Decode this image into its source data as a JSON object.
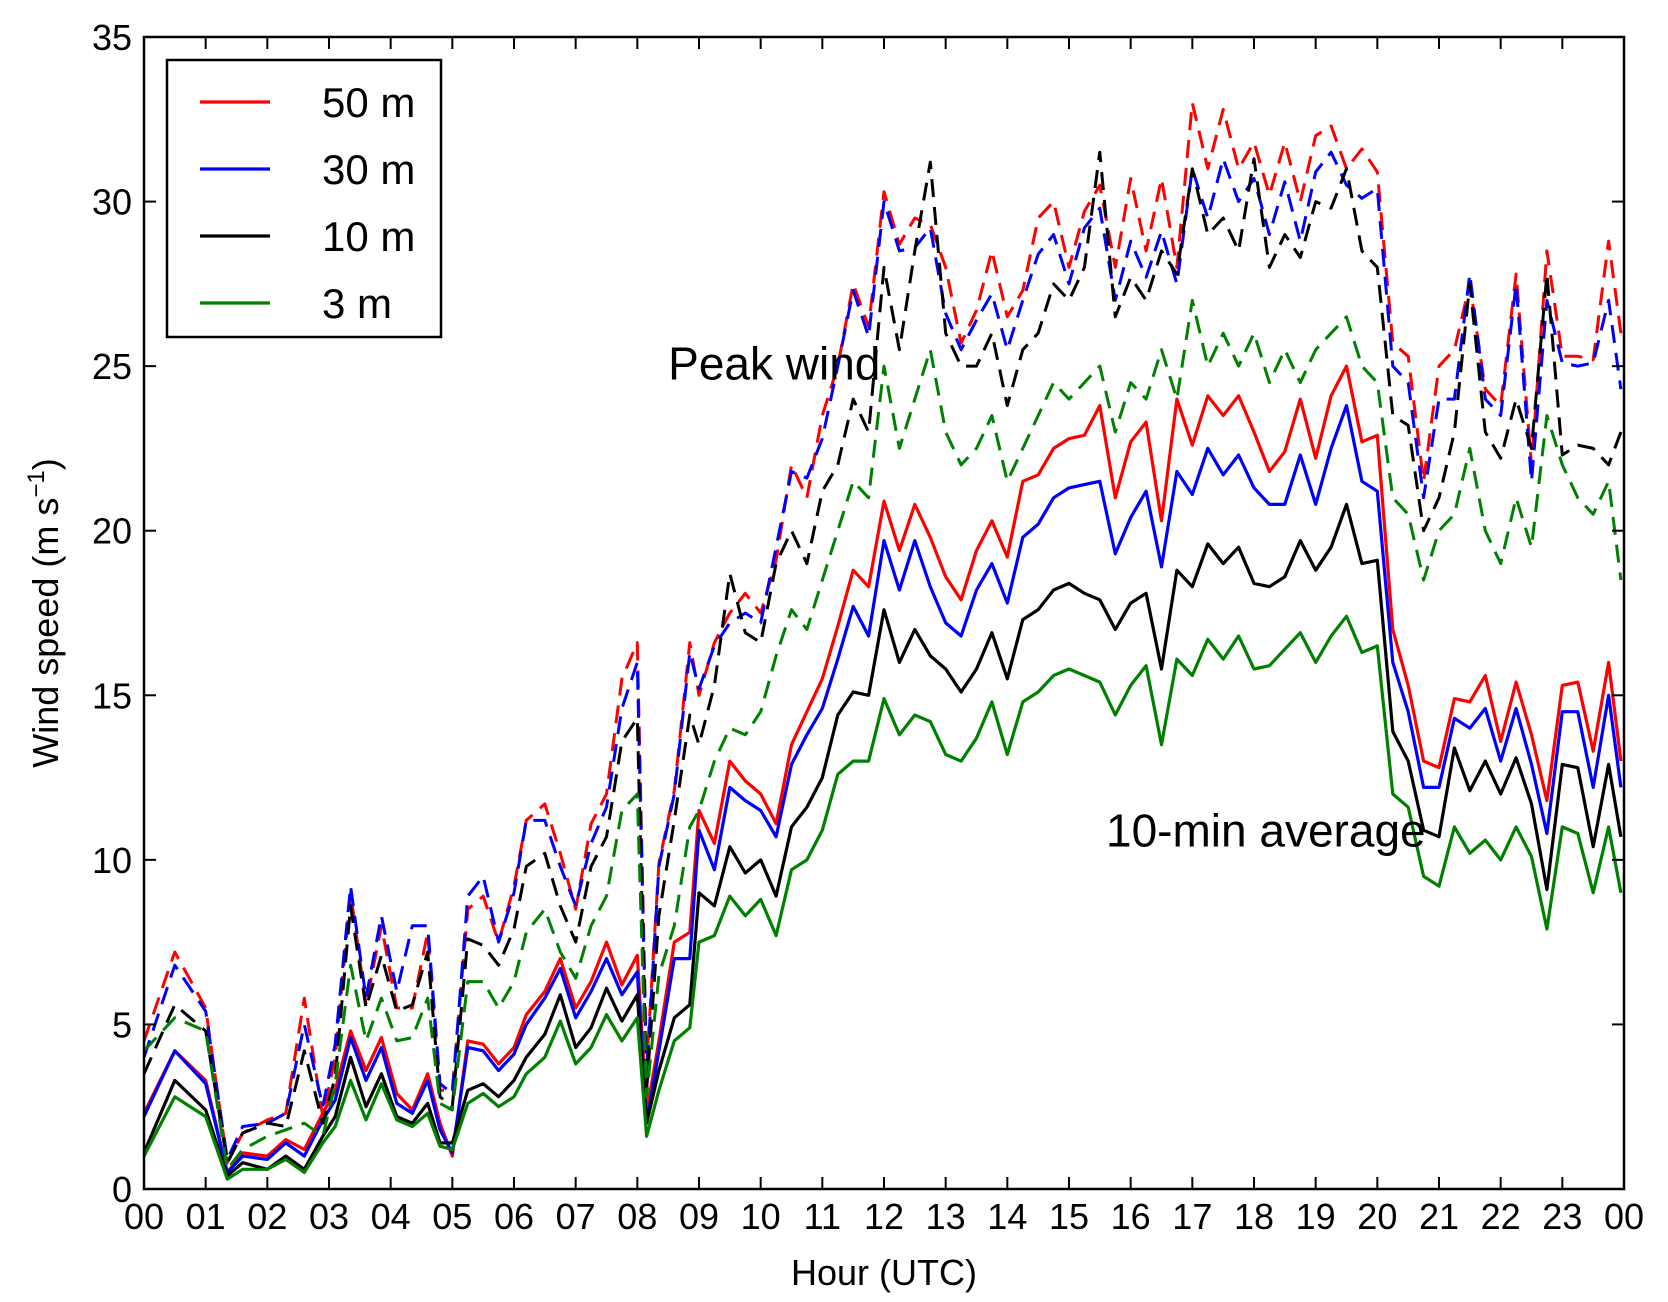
{
  "chart_data": {
    "type": "line",
    "xlabel": "Hour (UTC)",
    "ylabel": "Wind speed (m s",
    "ylabel_exponent": "−1",
    "ylabel_close": ")",
    "xlim": [
      0,
      24
    ],
    "ylim": [
      0,
      35
    ],
    "x_ticks": [
      {
        "value": 0,
        "label": "00"
      },
      {
        "value": 1,
        "label": "01"
      },
      {
        "value": 2,
        "label": "02"
      },
      {
        "value": 3,
        "label": "03"
      },
      {
        "value": 4,
        "label": "04"
      },
      {
        "value": 5,
        "label": "05"
      },
      {
        "value": 6,
        "label": "06"
      },
      {
        "value": 7,
        "label": "07"
      },
      {
        "value": 8,
        "label": "08"
      },
      {
        "value": 9,
        "label": "09"
      },
      {
        "value": 10,
        "label": "10"
      },
      {
        "value": 11,
        "label": "11"
      },
      {
        "value": 12,
        "label": "12"
      },
      {
        "value": 13,
        "label": "13"
      },
      {
        "value": 14,
        "label": "14"
      },
      {
        "value": 15,
        "label": "15"
      },
      {
        "value": 16,
        "label": "16"
      },
      {
        "value": 17,
        "label": "17"
      },
      {
        "value": 18,
        "label": "18"
      },
      {
        "value": 19,
        "label": "19"
      },
      {
        "value": 20,
        "label": "20"
      },
      {
        "value": 21,
        "label": "21"
      },
      {
        "value": 22,
        "label": "22"
      },
      {
        "value": 23,
        "label": "23"
      },
      {
        "value": 24,
        "label": "00"
      }
    ],
    "y_ticks": [
      {
        "value": 0,
        "label": "0"
      },
      {
        "value": 5,
        "label": "5"
      },
      {
        "value": 10,
        "label": "10"
      },
      {
        "value": 15,
        "label": "15"
      },
      {
        "value": 20,
        "label": "20"
      },
      {
        "value": 25,
        "label": "25"
      },
      {
        "value": 30,
        "label": "30"
      },
      {
        "value": 35,
        "label": "35"
      }
    ],
    "grid": false,
    "legend_position": "top-left",
    "annotations": [
      {
        "text": "Peak wind",
        "x": 8.5,
        "y": 24.6
      },
      {
        "text": "10-min average",
        "x": 15.6,
        "y": 10.4
      }
    ],
    "x": [
      0.0,
      0.5,
      1.0,
      1.35,
      1.6,
      2.0,
      2.3,
      2.6,
      2.9,
      3.1,
      3.35,
      3.6,
      3.85,
      4.1,
      4.35,
      4.6,
      4.8,
      5.0,
      5.25,
      5.5,
      5.75,
      6.0,
      6.2,
      6.5,
      6.75,
      7.0,
      7.25,
      7.5,
      7.75,
      8.0,
      8.15,
      8.35,
      8.6,
      8.85,
      9.0,
      9.25,
      9.5,
      9.75,
      10.0,
      10.25,
      10.5,
      10.75,
      11.0,
      11.25,
      11.5,
      11.75,
      12.0,
      12.25,
      12.5,
      12.75,
      13.0,
      13.25,
      13.5,
      13.75,
      14.0,
      14.25,
      14.5,
      14.75,
      15.0,
      15.25,
      15.5,
      15.75,
      16.0,
      16.25,
      16.5,
      16.75,
      17.0,
      17.25,
      17.5,
      17.75,
      18.0,
      18.25,
      18.5,
      18.75,
      19.0,
      19.25,
      19.5,
      19.75,
      20.0,
      20.25,
      20.5,
      20.75,
      21.0,
      21.25,
      21.5,
      21.75,
      22.0,
      22.25,
      22.5,
      22.75,
      23.0,
      23.25,
      23.5,
      23.75,
      23.95
    ],
    "series": [
      {
        "name": "50 m",
        "group": "10-min average",
        "color": "#ff0000",
        "dash": "solid",
        "values": [
          2.3,
          4.2,
          3.3,
          0.5,
          1.1,
          1.0,
          1.5,
          1.2,
          2.3,
          3.0,
          4.8,
          3.6,
          4.6,
          2.9,
          2.4,
          3.5,
          2.0,
          1.0,
          4.5,
          4.4,
          3.8,
          4.3,
          5.3,
          6.0,
          7.0,
          5.5,
          6.3,
          7.5,
          6.2,
          7.1,
          2.3,
          4.5,
          7.5,
          7.8,
          11.5,
          10.5,
          13.0,
          12.4,
          12.0,
          11.1,
          13.5,
          14.5,
          15.5,
          17.1,
          18.8,
          18.3,
          20.9,
          19.4,
          20.8,
          19.8,
          18.6,
          17.9,
          19.4,
          20.3,
          19.2,
          21.5,
          21.7,
          22.5,
          22.8,
          22.9,
          23.8,
          21.0,
          22.7,
          23.3,
          20.3,
          24.0,
          22.6,
          24.1,
          23.5,
          24.1,
          23.0,
          21.8,
          22.4,
          24.0,
          22.2,
          24.1,
          25.0,
          22.7,
          22.9,
          17.0,
          15.3,
          13.0,
          12.8,
          14.9,
          14.8,
          15.6,
          13.6,
          15.4,
          13.8,
          11.8,
          15.3,
          15.4,
          13.3,
          16.0,
          13.0
        ]
      },
      {
        "name": "30 m",
        "group": "10-min average",
        "color": "#0000ff",
        "dash": "solid",
        "values": [
          2.2,
          4.2,
          3.2,
          0.5,
          1.0,
          0.9,
          1.4,
          1.0,
          2.1,
          2.7,
          4.6,
          3.3,
          4.3,
          2.6,
          2.3,
          3.3,
          1.8,
          1.1,
          4.3,
          4.2,
          3.6,
          4.1,
          5.0,
          5.8,
          6.7,
          5.2,
          6.0,
          7.0,
          5.9,
          6.6,
          2.0,
          4.2,
          7.0,
          7.0,
          10.9,
          9.7,
          12.2,
          11.8,
          11.5,
          10.7,
          12.9,
          13.8,
          14.6,
          16.1,
          17.7,
          16.8,
          19.7,
          18.2,
          19.7,
          18.3,
          17.2,
          16.8,
          18.2,
          19.0,
          17.8,
          19.8,
          20.2,
          21.0,
          21.3,
          21.4,
          21.5,
          19.3,
          20.4,
          21.2,
          18.9,
          21.8,
          21.1,
          22.5,
          21.7,
          22.3,
          21.3,
          20.8,
          20.8,
          22.3,
          20.8,
          22.5,
          23.8,
          21.5,
          21.2,
          16.0,
          14.5,
          12.2,
          12.2,
          14.3,
          14.0,
          14.6,
          13.0,
          14.6,
          12.9,
          10.8,
          14.5,
          14.5,
          12.2,
          15.0,
          12.2
        ]
      },
      {
        "name": "10 m",
        "group": "10-min average",
        "color": "#000000",
        "dash": "solid",
        "values": [
          1.1,
          3.3,
          2.4,
          0.4,
          0.8,
          0.6,
          1.0,
          0.6,
          1.6,
          2.2,
          4.0,
          2.5,
          3.5,
          2.2,
          2.0,
          2.6,
          1.4,
          1.4,
          3.0,
          3.2,
          2.8,
          3.3,
          4.0,
          4.7,
          5.9,
          4.3,
          4.9,
          6.1,
          5.1,
          5.9,
          2.0,
          3.6,
          5.2,
          5.6,
          9.0,
          8.6,
          10.4,
          9.6,
          10.0,
          8.9,
          11.0,
          11.6,
          12.5,
          14.4,
          15.1,
          15.0,
          17.6,
          16.0,
          17.0,
          16.2,
          15.8,
          15.1,
          15.8,
          16.9,
          15.5,
          17.3,
          17.6,
          18.2,
          18.4,
          18.1,
          17.9,
          17.0,
          17.8,
          18.1,
          15.8,
          18.8,
          18.3,
          19.6,
          19.0,
          19.5,
          18.4,
          18.3,
          18.6,
          19.7,
          18.8,
          19.5,
          20.8,
          19.0,
          19.1,
          13.9,
          13.0,
          10.9,
          10.7,
          13.4,
          12.1,
          13.0,
          12.0,
          13.1,
          11.7,
          9.1,
          12.9,
          12.8,
          10.4,
          12.9,
          10.7
        ]
      },
      {
        "name": "3 m",
        "group": "10-min average",
        "color": "#008000",
        "dash": "solid",
        "values": [
          1.0,
          2.8,
          2.2,
          0.3,
          0.6,
          0.6,
          0.9,
          0.5,
          1.4,
          1.9,
          3.3,
          2.1,
          3.2,
          2.1,
          1.9,
          2.3,
          1.3,
          1.2,
          2.6,
          2.9,
          2.5,
          2.8,
          3.5,
          4.0,
          5.1,
          3.8,
          4.3,
          5.3,
          4.5,
          5.2,
          1.6,
          3.0,
          4.5,
          4.9,
          7.5,
          7.7,
          8.9,
          8.3,
          8.8,
          7.7,
          9.7,
          10.0,
          10.9,
          12.6,
          13.0,
          13.0,
          14.9,
          13.8,
          14.4,
          14.2,
          13.2,
          13.0,
          13.7,
          14.8,
          13.2,
          14.8,
          15.1,
          15.6,
          15.8,
          15.6,
          15.4,
          14.4,
          15.3,
          15.9,
          13.5,
          16.1,
          15.6,
          16.7,
          16.1,
          16.8,
          15.8,
          15.9,
          16.4,
          16.9,
          16.0,
          16.8,
          17.4,
          16.3,
          16.5,
          12.0,
          11.6,
          9.5,
          9.2,
          11.0,
          10.2,
          10.6,
          10.0,
          11.0,
          10.1,
          7.9,
          11.0,
          10.8,
          9.0,
          11.0,
          9.0
        ]
      },
      {
        "name": "50 m",
        "group": "Peak wind",
        "color": "#ff0000",
        "dash": "dashed",
        "values": [
          4.5,
          7.2,
          5.5,
          0.8,
          1.7,
          2.1,
          2.3,
          5.8,
          2.2,
          4.0,
          9.0,
          5.6,
          8.0,
          5.5,
          5.5,
          7.8,
          3.0,
          3.0,
          8.5,
          8.9,
          7.5,
          9.2,
          11.2,
          11.7,
          10.2,
          8.5,
          11.1,
          12.0,
          15.5,
          16.6,
          3.7,
          9.9,
          12.1,
          16.6,
          15.0,
          16.6,
          17.5,
          18.1,
          17.5,
          19.1,
          22.0,
          21.0,
          23.5,
          25.0,
          27.5,
          26.2,
          30.3,
          28.7,
          29.5,
          29.3,
          28.0,
          25.7,
          26.7,
          28.5,
          26.5,
          27.3,
          29.5,
          30.0,
          28.0,
          29.7,
          30.5,
          28.0,
          30.7,
          28.5,
          30.7,
          28.0,
          33.0,
          31.0,
          32.8,
          31.0,
          31.8,
          30.2,
          31.8,
          30.0,
          32.0,
          32.3,
          31.0,
          31.6,
          30.9,
          25.7,
          25.3,
          21.5,
          25.0,
          25.5,
          27.5,
          24.3,
          23.8,
          27.8,
          22.0,
          28.5,
          25.3,
          25.3,
          25.2,
          28.8,
          26.0
        ]
      },
      {
        "name": "30 m",
        "group": "Peak wind",
        "color": "#0000ff",
        "dash": "dashed",
        "values": [
          4.0,
          6.8,
          5.4,
          0.9,
          1.9,
          2.0,
          2.3,
          5.0,
          2.5,
          4.4,
          9.2,
          5.8,
          8.3,
          6.0,
          8.0,
          8.0,
          3.2,
          2.9,
          8.9,
          9.5,
          7.5,
          9.0,
          11.2,
          11.2,
          9.8,
          8.6,
          10.5,
          11.6,
          14.6,
          16.0,
          3.4,
          9.8,
          12.0,
          16.3,
          15.2,
          16.5,
          17.2,
          17.5,
          17.2,
          19.5,
          21.8,
          21.6,
          22.8,
          25.0,
          27.3,
          25.9,
          30.0,
          28.5,
          28.6,
          29.2,
          26.6,
          25.5,
          26.4,
          27.2,
          25.5,
          27.0,
          28.4,
          29.0,
          27.5,
          29.2,
          29.8,
          27.0,
          28.8,
          27.7,
          29.1,
          27.5,
          31.0,
          29.5,
          31.3,
          30.0,
          30.7,
          29.0,
          30.6,
          28.8,
          30.9,
          31.5,
          30.5,
          30.1,
          30.4,
          25.0,
          24.5,
          21.0,
          24.0,
          24.0,
          27.8,
          24.0,
          23.5,
          27.5,
          21.5,
          27.0,
          25.1,
          25.0,
          25.1,
          27.0,
          24.3
        ]
      },
      {
        "name": "10 m",
        "group": "Peak wind",
        "color": "#000000",
        "dash": "dashed",
        "values": [
          3.5,
          5.6,
          4.8,
          0.8,
          1.7,
          2.0,
          1.9,
          4.2,
          2.0,
          3.4,
          8.6,
          5.5,
          7.1,
          5.4,
          5.6,
          7.2,
          2.8,
          2.5,
          7.6,
          7.4,
          6.8,
          7.9,
          9.8,
          10.2,
          8.6,
          7.5,
          9.8,
          10.7,
          13.6,
          14.3,
          3.0,
          8.3,
          11.2,
          14.4,
          13.5,
          15.3,
          18.7,
          16.9,
          16.6,
          19.0,
          20.0,
          19.0,
          21.2,
          22.0,
          24.0,
          23.0,
          28.0,
          25.5,
          28.5,
          31.2,
          26.0,
          25.0,
          25.0,
          26.0,
          23.8,
          25.5,
          26.0,
          27.5,
          27.0,
          28.0,
          31.5,
          26.5,
          27.7,
          27.0,
          28.5,
          27.8,
          31.0,
          29.0,
          29.5,
          28.5,
          31.3,
          28.0,
          29.0,
          28.3,
          30.0,
          29.8,
          31.0,
          28.5,
          28.0,
          23.5,
          23.2,
          20.0,
          21.0,
          23.0,
          27.5,
          23.0,
          22.2,
          24.0,
          22.5,
          27.8,
          22.3,
          22.6,
          22.5,
          22.0,
          23.0
        ]
      },
      {
        "name": "3 m",
        "group": "Peak wind",
        "color": "#008000",
        "dash": "dashed",
        "values": [
          4.2,
          5.2,
          4.8,
          0.6,
          1.2,
          1.6,
          1.8,
          2.0,
          1.6,
          3.2,
          6.8,
          4.5,
          5.8,
          4.5,
          4.6,
          5.8,
          2.6,
          2.4,
          6.3,
          6.3,
          5.5,
          6.3,
          7.8,
          8.5,
          7.2,
          6.4,
          8.0,
          8.9,
          11.5,
          12.0,
          2.8,
          6.5,
          8.0,
          11.0,
          11.5,
          13.0,
          14.0,
          13.8,
          14.5,
          16.2,
          17.6,
          17.0,
          18.5,
          20.0,
          21.5,
          21.0,
          25.0,
          22.5,
          24.0,
          25.5,
          23.0,
          22.0,
          22.5,
          23.5,
          21.5,
          22.5,
          23.5,
          24.5,
          24.0,
          24.5,
          25.0,
          23.0,
          24.5,
          24.0,
          25.5,
          24.0,
          27.0,
          25.0,
          26.0,
          25.0,
          26.0,
          24.5,
          25.5,
          24.5,
          25.5,
          26.0,
          26.5,
          25.0,
          24.5,
          21.0,
          20.5,
          18.5,
          20.0,
          20.5,
          22.5,
          20.0,
          19.0,
          21.0,
          19.5,
          23.5,
          22.0,
          21.0,
          20.5,
          21.5,
          18.5
        ]
      }
    ],
    "legend": [
      {
        "label": "50 m",
        "color": "#ff0000"
      },
      {
        "label": "30 m",
        "color": "#0000ff"
      },
      {
        "label": "10 m",
        "color": "#000000"
      },
      {
        "label": "3 m",
        "color": "#008000"
      }
    ]
  }
}
